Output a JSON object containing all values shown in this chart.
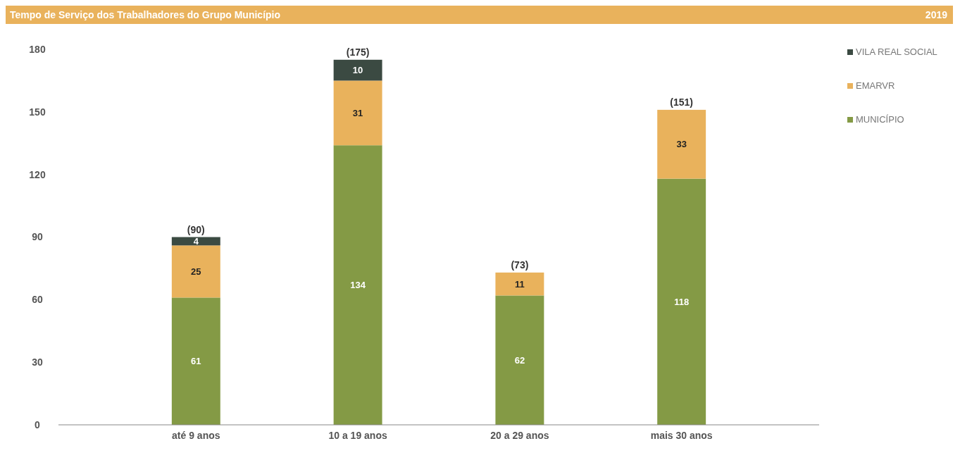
{
  "chart_data": {
    "type": "bar",
    "title": "Tempo de Serviço dos Trabalhadores do Grupo Município",
    "subtitle": "2019",
    "categories": [
      "até 9 anos",
      "10 a 19 anos",
      "20 a 29 anos",
      "mais 30 anos"
    ],
    "series": [
      {
        "name": "MUNICÍPIO",
        "color": "#849a45",
        "values": [
          61,
          134,
          62,
          118
        ]
      },
      {
        "name": "EMARVR",
        "color": "#e9b25c",
        "values": [
          25,
          31,
          11,
          33
        ]
      },
      {
        "name": "VILA REAL SOCIAL",
        "color": "#3b4a42",
        "values": [
          4,
          10,
          null,
          null
        ]
      }
    ],
    "stacked": true,
    "ylim": [
      0,
      180
    ],
    "yticks": [
      0,
      30,
      60,
      90,
      120,
      150,
      180
    ],
    "data_labels": true,
    "totals": [
      "(90)",
      "(175)",
      "(73)",
      "(151)"
    ],
    "legend": "top right",
    "grid": false
  }
}
